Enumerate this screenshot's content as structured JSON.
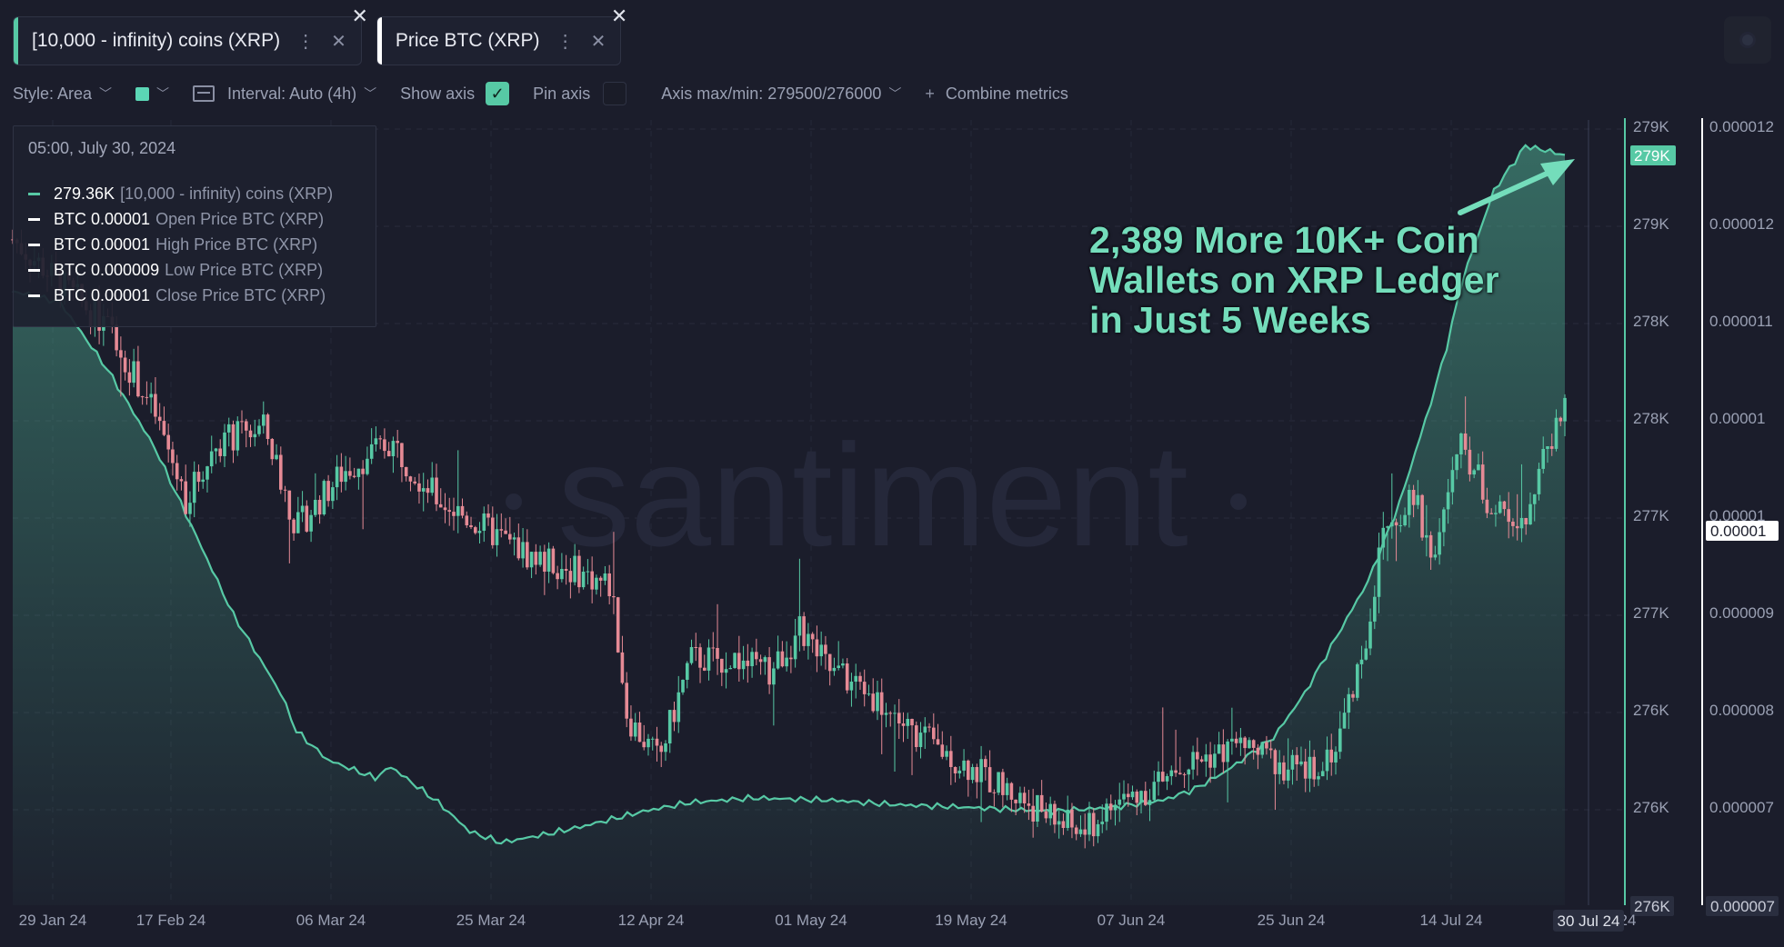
{
  "tabs": [
    {
      "label": "[10,000 - infinity) coins (XRP)",
      "color": "#57c9a5"
    },
    {
      "label": "Price BTC (XRP)",
      "color": "#ffffff"
    }
  ],
  "toolbar": {
    "style": "Style: Area",
    "interval": "Interval: Auto (4h)",
    "show_axis": "Show axis",
    "show_axis_checked": true,
    "pin_axis": "Pin axis",
    "axis_maxmin": "Axis max/min: 279500/276000",
    "combine": "Combine metrics"
  },
  "legend": {
    "date": "05:00, July 30, 2024",
    "rows": [
      {
        "value": "279.36K",
        "label": "[10,000 - infinity) coins (XRP)",
        "color": "#57c9a5"
      },
      {
        "value": "BTC 0.00001",
        "label": "Open Price BTC (XRP)",
        "color": "#ffffff"
      },
      {
        "value": "BTC 0.00001",
        "label": "High Price BTC (XRP)",
        "color": "#ffffff"
      },
      {
        "value": "BTC 0.000009",
        "label": "Low Price BTC (XRP)",
        "color": "#ffffff"
      },
      {
        "value": "BTC 0.00001",
        "label": "Close Price BTC (XRP)",
        "color": "#ffffff"
      }
    ]
  },
  "annotation": [
    "2,389 More 10K+ Coin",
    "Wallets on XRP Ledger",
    "in Just 5 Weeks"
  ],
  "watermark": "santiment",
  "colors": {
    "wallets": "#57c9a5",
    "up": "#57c9a5",
    "down": "#e58a95",
    "background": "#1b1d2b"
  },
  "chart_data": {
    "type": "line",
    "x_ticks": [
      "29 Jan 24",
      "17 Feb 24",
      "06 Mar 24",
      "25 Mar 24",
      "12 Apr 24",
      "01 May 24",
      "19 May 24",
      "07 Jun 24",
      "25 Jun 24",
      "14 Jul 24",
      "24"
    ],
    "current_x_label": "30 Jul 24",
    "y_left_ticks": [
      "279K",
      "279K",
      "278K",
      "278K",
      "277K",
      "277K",
      "276K",
      "276K",
      "276K"
    ],
    "y_left_current": "279K",
    "y_left_min_label": "276K",
    "y_right_ticks": [
      "0.000012",
      "0.000012",
      "0.000011",
      "0.00001",
      "0.00001",
      "0.000009",
      "0.000008",
      "0.000007"
    ],
    "y_right_current": "0.00001",
    "y_right_min_label": "0.000007",
    "y_left_range": [
      276000,
      279500
    ],
    "y_right_range": [
      6.6e-06,
      1.2e-05
    ],
    "series": [
      {
        "name": "[10,000 - infinity) coins (XRP)",
        "style": "area",
        "color": "#57c9a5",
        "points": [
          [
            0,
            278750
          ],
          [
            3,
            278700
          ],
          [
            6,
            278400
          ],
          [
            9,
            278050
          ],
          [
            12,
            277600
          ],
          [
            14,
            277300
          ],
          [
            17,
            276950
          ],
          [
            18,
            276780
          ],
          [
            20,
            276650
          ],
          [
            23,
            276570
          ],
          [
            24,
            276620
          ],
          [
            27,
            276460
          ],
          [
            29,
            276330
          ],
          [
            31,
            276280
          ],
          [
            34,
            276320
          ],
          [
            36,
            276350
          ],
          [
            40,
            276420
          ],
          [
            43,
            276460
          ],
          [
            47,
            276480
          ],
          [
            52,
            276470
          ],
          [
            56,
            276450
          ],
          [
            60,
            276440
          ],
          [
            63,
            276430
          ],
          [
            66,
            276420
          ],
          [
            70,
            276440
          ],
          [
            73,
            276470
          ],
          [
            75,
            276520
          ],
          [
            77,
            276600
          ],
          [
            80,
            276750
          ],
          [
            82,
            276950
          ],
          [
            84,
            277200
          ],
          [
            86,
            277450
          ],
          [
            88,
            277800
          ],
          [
            90,
            278250
          ],
          [
            91,
            278500
          ],
          [
            92,
            278800
          ],
          [
            94,
            279200
          ],
          [
            96,
            279400
          ],
          [
            98.5,
            279360
          ]
        ]
      },
      {
        "name": "Price BTC (XRP)",
        "style": "candles",
        "color_up": "#57c9a5",
        "color_down": "#e58a95",
        "points": [
          [
            0,
            1.12e-05
          ],
          [
            3,
            1.09e-05
          ],
          [
            6,
            1.06e-05
          ],
          [
            9,
            1e-05
          ],
          [
            11,
            9.4e-06
          ],
          [
            13,
            9.8e-06
          ],
          [
            16,
            9.9e-06
          ],
          [
            18,
            9.2e-06
          ],
          [
            21,
            9.6e-06
          ],
          [
            24,
            9.8e-06
          ],
          [
            27,
            9.4e-06
          ],
          [
            30,
            9.2e-06
          ],
          [
            33,
            9e-06
          ],
          [
            36,
            8.9e-06
          ],
          [
            38,
            8.8e-06
          ],
          [
            39,
            7.9e-06
          ],
          [
            41,
            7.6e-06
          ],
          [
            43,
            8.3e-06
          ],
          [
            46,
            8.3e-06
          ],
          [
            48,
            8.2e-06
          ],
          [
            50,
            8.5e-06
          ],
          [
            52,
            8.2e-06
          ],
          [
            54,
            8.1e-06
          ],
          [
            57,
            7.8e-06
          ],
          [
            60,
            7.6e-06
          ],
          [
            63,
            7.4e-06
          ],
          [
            66,
            7.2e-06
          ],
          [
            68,
            7.1e-06
          ],
          [
            70,
            7.3e-06
          ],
          [
            72,
            7.4e-06
          ],
          [
            75,
            7.6e-06
          ],
          [
            78,
            7.7e-06
          ],
          [
            80,
            7.6e-06
          ],
          [
            82,
            7.5e-06
          ],
          [
            84,
            7.7e-06
          ],
          [
            86,
            8.5e-06
          ],
          [
            87,
            9.2e-06
          ],
          [
            89,
            9.4e-06
          ],
          [
            90,
            9e-06
          ],
          [
            92,
            9.8e-06
          ],
          [
            94,
            9.3e-06
          ],
          [
            96,
            9.3e-06
          ],
          [
            98.5,
            1.01e-05
          ]
        ]
      }
    ]
  }
}
